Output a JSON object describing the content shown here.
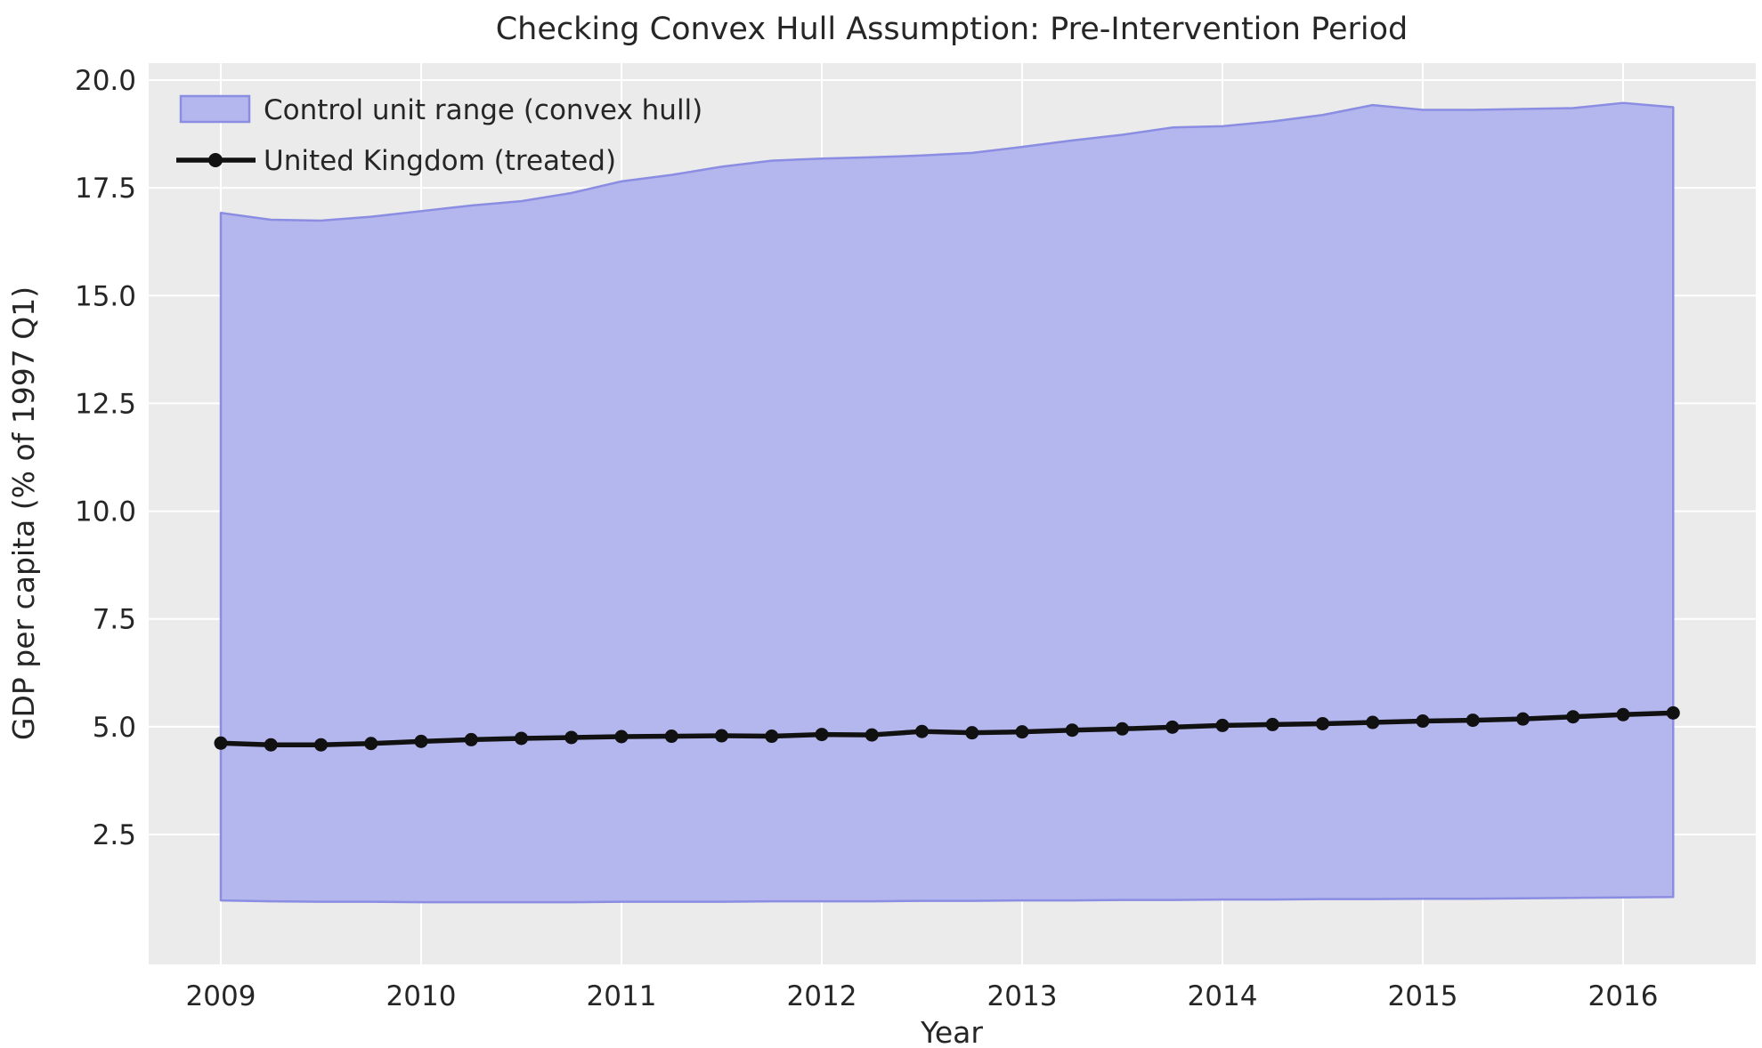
{
  "chart_data": {
    "type": "area",
    "title": "Checking Convex Hull Assumption: Pre-Intervention Period",
    "xlabel": "Year",
    "ylabel": "GDP per capita (% of 1997 Q1)",
    "grid": true,
    "legend_position": "upper left",
    "plot_bg_color": "#ebebeb",
    "grid_color": "#ffffff",
    "text_color": "#262626",
    "xlim": [
      2008.64,
      2016.66
    ],
    "ylim": [
      -0.51,
      20.39
    ],
    "x_ticks": [
      2009,
      2010,
      2011,
      2012,
      2013,
      2014,
      2015,
      2016
    ],
    "x_tick_labels": [
      "2009",
      "2010",
      "2011",
      "2012",
      "2013",
      "2014",
      "2015",
      "2016"
    ],
    "y_ticks": [
      2.5,
      5.0,
      7.5,
      10.0,
      12.5,
      15.0,
      17.5,
      20.0
    ],
    "y_tick_labels": [
      "2.5",
      "5.0",
      "7.5",
      "10.0",
      "12.5",
      "15.0",
      "17.5",
      "20.0"
    ],
    "x": [
      2009.0,
      2009.25,
      2009.5,
      2009.75,
      2010.0,
      2010.25,
      2010.5,
      2010.75,
      2011.0,
      2011.25,
      2011.5,
      2011.75,
      2012.0,
      2012.25,
      2012.5,
      2012.75,
      2013.0,
      2013.25,
      2013.5,
      2013.75,
      2014.0,
      2014.25,
      2014.5,
      2014.75,
      2015.0,
      2015.25,
      2015.5,
      2015.75,
      2016.0,
      2016.25
    ],
    "series": [
      {
        "name": "Control unit range (convex hull)",
        "type": "band",
        "fill_color": "#b4b6ee",
        "edge_color": "#8a8de2",
        "upper": [
          16.92,
          16.76,
          16.74,
          16.83,
          16.96,
          17.09,
          17.19,
          17.38,
          17.65,
          17.8,
          17.99,
          18.13,
          18.18,
          18.21,
          18.25,
          18.31,
          18.45,
          18.6,
          18.73,
          18.9,
          18.93,
          19.04,
          19.19,
          19.42,
          19.31,
          19.31,
          19.33,
          19.35,
          19.47,
          19.37
        ],
        "lower": [
          0.97,
          0.95,
          0.94,
          0.94,
          0.93,
          0.93,
          0.93,
          0.93,
          0.94,
          0.94,
          0.94,
          0.95,
          0.95,
          0.95,
          0.96,
          0.96,
          0.97,
          0.97,
          0.98,
          0.98,
          0.99,
          0.99,
          1.0,
          1.0,
          1.01,
          1.01,
          1.02,
          1.03,
          1.04,
          1.05
        ]
      },
      {
        "name": "United Kingdom (treated)",
        "type": "line",
        "color": "#111111",
        "marker": "circle",
        "values": [
          4.62,
          4.58,
          4.58,
          4.61,
          4.66,
          4.7,
          4.73,
          4.75,
          4.77,
          4.78,
          4.79,
          4.78,
          4.82,
          4.81,
          4.89,
          4.86,
          4.88,
          4.92,
          4.95,
          4.99,
          5.03,
          5.05,
          5.07,
          5.1,
          5.13,
          5.15,
          5.18,
          5.23,
          5.28,
          5.32
        ]
      }
    ]
  }
}
